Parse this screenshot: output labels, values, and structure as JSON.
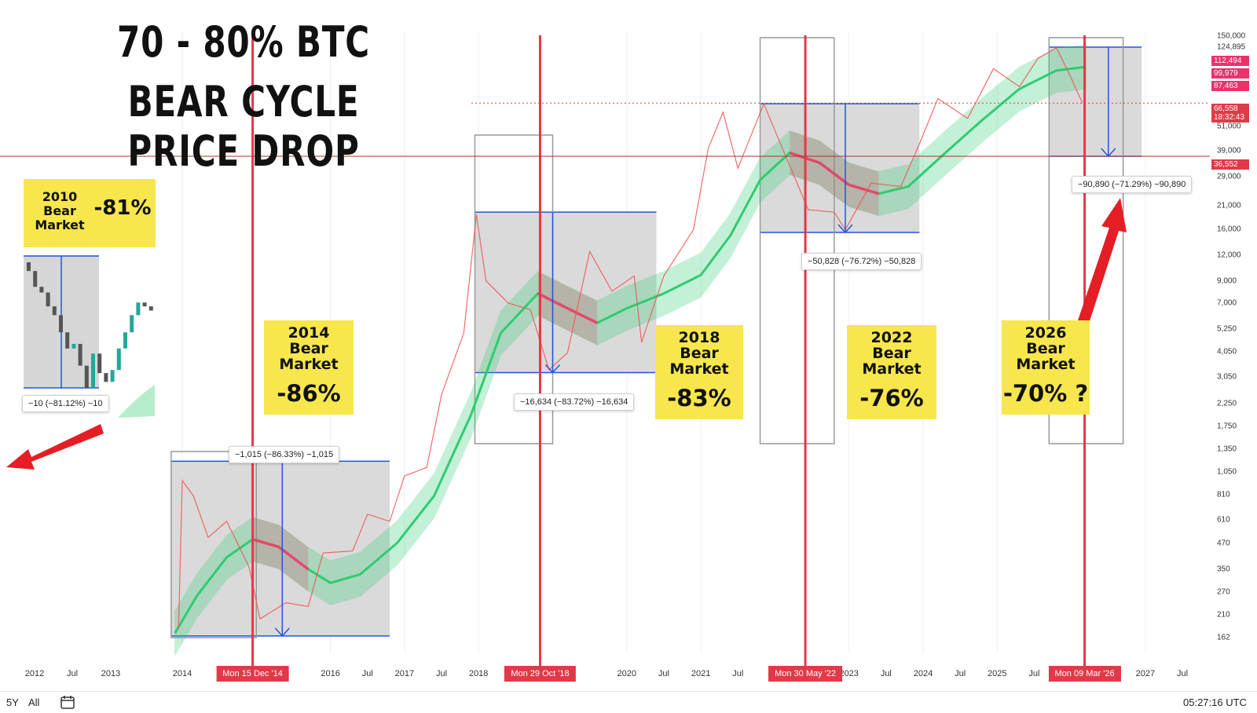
{
  "title": {
    "line1": "70 - 80% BTC",
    "line2": "BEAR CYCLE PRICE DROP"
  },
  "colors": {
    "vline": "#e03a48",
    "box_fill": "#d6d6d6",
    "measure": "#2255dd",
    "band_up": "#2ecc71",
    "band_down": "#e04a6a",
    "candle_up": "#26a69a",
    "candle_down": "#ef5350",
    "arrow": "#e41e24",
    "yellow": "#f7e64c"
  },
  "chart_data": {
    "type": "line",
    "title": "70 - 80% BTC BEAR CYCLE PRICE DROP",
    "scale": "log",
    "x_ticks": [
      "2012",
      "Jul",
      "2013",
      "2014",
      "2016",
      "Jul",
      "2017",
      "Jul",
      "2018",
      "2020",
      "Jul",
      "2021",
      "Jul",
      "2023",
      "Jul",
      "2024",
      "Jul",
      "2025",
      "Jul",
      "2027",
      "Jul"
    ],
    "x_highlights": [
      "Mon 15 Dec '14",
      "Mon 29 Oct '18",
      "Mon 30 May '22",
      "Mon 09 Mar '26"
    ],
    "y_ticks": [
      "150,000",
      "124,895",
      "51,000",
      "39,000",
      "29,000",
      "21,000",
      "16,000",
      "12,000",
      "9,000",
      "7,000",
      "5,250",
      "4,050",
      "3,050",
      "2,250",
      "1,750",
      "1,350",
      "1,050",
      "810",
      "610",
      "470",
      "350",
      "270",
      "210",
      "162"
    ],
    "price_badges": [
      {
        "value": "112,494",
        "color": "#e8336b"
      },
      {
        "value": "99,979",
        "color": "#e8336b"
      },
      {
        "value": "87,463",
        "color": "#e8336b"
      },
      {
        "value": "66,558",
        "sub": "18:32:43",
        "color": "#e03a48"
      },
      {
        "value": "36,552",
        "color": "#e03a48"
      }
    ],
    "band_mid": [
      {
        "year": 2013.9,
        "price": 170
      },
      {
        "year": 2014.2,
        "price": 260
      },
      {
        "year": 2014.6,
        "price": 400
      },
      {
        "year": 2014.95,
        "price": 490
      },
      {
        "year": 2015.3,
        "price": 450
      },
      {
        "year": 2015.7,
        "price": 350
      },
      {
        "year": 2016.0,
        "price": 300
      },
      {
        "year": 2016.4,
        "price": 330
      },
      {
        "year": 2016.9,
        "price": 470
      },
      {
        "year": 2017.4,
        "price": 800
      },
      {
        "year": 2017.9,
        "price": 2000
      },
      {
        "year": 2018.3,
        "price": 5000
      },
      {
        "year": 2018.8,
        "price": 7800
      },
      {
        "year": 2019.2,
        "price": 6600
      },
      {
        "year": 2019.6,
        "price": 5600
      },
      {
        "year": 2020.0,
        "price": 6600
      },
      {
        "year": 2020.5,
        "price": 7800
      },
      {
        "year": 2021.0,
        "price": 9600
      },
      {
        "year": 2021.4,
        "price": 15000
      },
      {
        "year": 2021.8,
        "price": 28000
      },
      {
        "year": 2022.2,
        "price": 38000
      },
      {
        "year": 2022.6,
        "price": 34000
      },
      {
        "year": 2023.0,
        "price": 26500
      },
      {
        "year": 2023.4,
        "price": 24000
      },
      {
        "year": 2023.8,
        "price": 26000
      },
      {
        "year": 2024.3,
        "price": 38000
      },
      {
        "year": 2024.8,
        "price": 55000
      },
      {
        "year": 2025.3,
        "price": 78000
      },
      {
        "year": 2025.8,
        "price": 96000
      },
      {
        "year": 2026.2,
        "price": 100000
      }
    ],
    "price": [
      {
        "year": 2013.95,
        "price": 180
      },
      {
        "year": 2014.0,
        "price": 950
      },
      {
        "year": 2014.15,
        "price": 800
      },
      {
        "year": 2014.35,
        "price": 500
      },
      {
        "year": 2014.6,
        "price": 600
      },
      {
        "year": 2014.9,
        "price": 360
      },
      {
        "year": 2015.05,
        "price": 200
      },
      {
        "year": 2015.4,
        "price": 240
      },
      {
        "year": 2015.7,
        "price": 230
      },
      {
        "year": 2015.9,
        "price": 420
      },
      {
        "year": 2016.3,
        "price": 430
      },
      {
        "year": 2016.5,
        "price": 650
      },
      {
        "year": 2016.8,
        "price": 600
      },
      {
        "year": 2017.0,
        "price": 1000
      },
      {
        "year": 2017.3,
        "price": 1100
      },
      {
        "year": 2017.5,
        "price": 2500
      },
      {
        "year": 2017.8,
        "price": 5000
      },
      {
        "year": 2017.97,
        "price": 19000
      },
      {
        "year": 2018.1,
        "price": 9000
      },
      {
        "year": 2018.4,
        "price": 7000
      },
      {
        "year": 2018.7,
        "price": 6500
      },
      {
        "year": 2018.95,
        "price": 3300
      },
      {
        "year": 2019.2,
        "price": 4000
      },
      {
        "year": 2019.5,
        "price": 12500
      },
      {
        "year": 2019.8,
        "price": 8000
      },
      {
        "year": 2020.1,
        "price": 9500
      },
      {
        "year": 2020.2,
        "price": 4500
      },
      {
        "year": 2020.5,
        "price": 9500
      },
      {
        "year": 2020.9,
        "price": 16000
      },
      {
        "year": 2021.1,
        "price": 40000
      },
      {
        "year": 2021.3,
        "price": 60000
      },
      {
        "year": 2021.5,
        "price": 32000
      },
      {
        "year": 2021.85,
        "price": 66000
      },
      {
        "year": 2022.1,
        "price": 40000
      },
      {
        "year": 2022.45,
        "price": 20000
      },
      {
        "year": 2022.8,
        "price": 19500
      },
      {
        "year": 2022.95,
        "price": 16000
      },
      {
        "year": 2023.3,
        "price": 27000
      },
      {
        "year": 2023.7,
        "price": 26000
      },
      {
        "year": 2023.95,
        "price": 42000
      },
      {
        "year": 2024.2,
        "price": 70000
      },
      {
        "year": 2024.6,
        "price": 56000
      },
      {
        "year": 2024.95,
        "price": 98000
      },
      {
        "year": 2025.3,
        "price": 80000
      },
      {
        "year": 2025.55,
        "price": 110000
      },
      {
        "year": 2025.8,
        "price": 124000
      },
      {
        "year": 2026.0,
        "price": 88000
      },
      {
        "year": 2026.15,
        "price": 66558
      }
    ],
    "inset_2010": {
      "label": "−10 (−81.12%) −10",
      "candles": [
        {
          "o": 30,
          "c": 25
        },
        {
          "o": 25,
          "c": 18
        },
        {
          "o": 18,
          "c": 16
        },
        {
          "o": 16,
          "c": 12
        },
        {
          "o": 12,
          "c": 10
        },
        {
          "o": 10,
          "c": 7
        },
        {
          "o": 7,
          "c": 5
        },
        {
          "o": 5,
          "c": 5.5
        },
        {
          "o": 5.5,
          "c": 3.5
        },
        {
          "o": 3.5,
          "c": 2.2
        },
        {
          "o": 2.2,
          "c": 4.5
        },
        {
          "o": 4.5,
          "c": 3
        },
        {
          "o": 3,
          "c": 2.5
        },
        {
          "o": 2.5,
          "c": 3.2
        },
        {
          "o": 3.2,
          "c": 5
        },
        {
          "o": 5,
          "c": 7
        },
        {
          "o": 7,
          "c": 10
        },
        {
          "o": 10,
          "c": 13
        },
        {
          "o": 13,
          "c": 12
        },
        {
          "o": 12,
          "c": 11
        }
      ]
    },
    "cycles": [
      {
        "name": "2010",
        "label": "Bear Market",
        "pct": "-81%"
      },
      {
        "name": "2014",
        "label": "Bear Market",
        "pct": "-86%",
        "measure": "−1,015 (−86.33%) −1,015",
        "date": "Mon 15 Dec '14"
      },
      {
        "name": "2018",
        "label": "Bear Market",
        "pct": "-83%",
        "measure": "−16,634 (−83.72%) −16,634",
        "date": "Mon 29 Oct '18"
      },
      {
        "name": "2022",
        "label": "Bear Market",
        "pct": "-76%",
        "measure": "−50,828 (−76.72%) −50,828",
        "date": "Mon 30 May '22"
      },
      {
        "name": "2026",
        "label": "Bear Market",
        "pct": "-70% ?",
        "measure": "−90,890 (−71.29%) −90,890",
        "date": "Mon 09 Mar '26"
      }
    ]
  },
  "bottom": {
    "range_5y": "5Y",
    "range_all": "All",
    "clock": "05:27:16 UTC"
  }
}
